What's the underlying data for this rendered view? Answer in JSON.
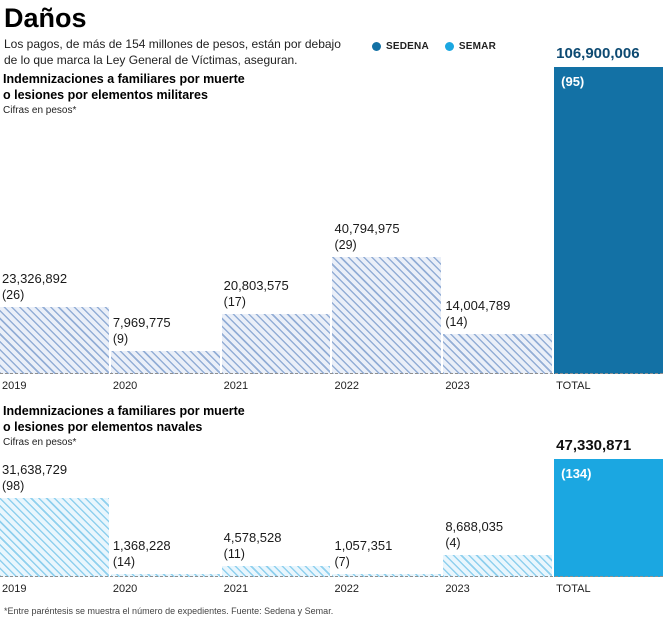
{
  "header": {
    "title": "Daños",
    "subtitle_line1": "Los pagos, de más de 154 millones de pesos, están por debajo",
    "subtitle_line2": "de lo que marca la Ley General de Víctimas, aseguran.",
    "legend": [
      {
        "label": "SEDENA",
        "color": "#1371a5"
      },
      {
        "label": "SEMAR",
        "color": "#1ba7e1"
      }
    ]
  },
  "footer": {
    "note": "*Entre paréntesis se muestra el número de expedientes. Fuente: Sedena y Semar."
  },
  "chart_data": [
    {
      "type": "bar",
      "title_line1": "Indemnizaciones a familiares por muerte",
      "title_line2": "o lesiones por elementos militares",
      "units_note": "Cifras en pesos*",
      "series_name": "SEDENA",
      "categories": [
        "2019",
        "2020",
        "2021",
        "2022",
        "2023",
        "TOTAL"
      ],
      "values": [
        23326892,
        7969775,
        20803575,
        40794975,
        14004789,
        106900006
      ],
      "value_labels": [
        "23,326,892",
        "7,969,775",
        "20,803,575",
        "40,794,975",
        "14,004,789",
        "106,900,006"
      ],
      "counts": [
        "(26)",
        "(9)",
        "(17)",
        "(29)",
        "(14)",
        "(95)"
      ],
      "ylim": [
        0,
        106900006
      ],
      "legend_position": "top-right",
      "grid": false,
      "colors": {
        "solid": "#1371a5",
        "hatch_stripe": "#93aed6",
        "hatch_bg": "#eaeff8",
        "total_value_text": "#0d4a72"
      }
    },
    {
      "type": "bar",
      "title_line1": "Indemnizaciones a familiares por muerte",
      "title_line2": "o lesiones por elementos navales",
      "units_note": "Cifras en pesos*",
      "series_name": "SEMAR",
      "categories": [
        "2019",
        "2020",
        "2021",
        "2022",
        "2023",
        "TOTAL"
      ],
      "values": [
        31638729,
        1368228,
        4578528,
        1057351,
        8688035,
        47330871
      ],
      "value_labels": [
        "31,638,729",
        "1,368,228",
        "4,578,528",
        "1,057,351",
        "8,688,035",
        "47,330,871"
      ],
      "counts": [
        "(98)",
        "(14)",
        "(11)",
        "(7)",
        "(4)",
        "(134)"
      ],
      "ylim": [
        0,
        47330871
      ],
      "legend_position": "top-right",
      "grid": false,
      "colors": {
        "solid": "#1ba7e1",
        "hatch_stripe": "#8fd0ee",
        "hatch_bg": "#e9f6fd",
        "total_value_text": "#111111"
      }
    }
  ]
}
